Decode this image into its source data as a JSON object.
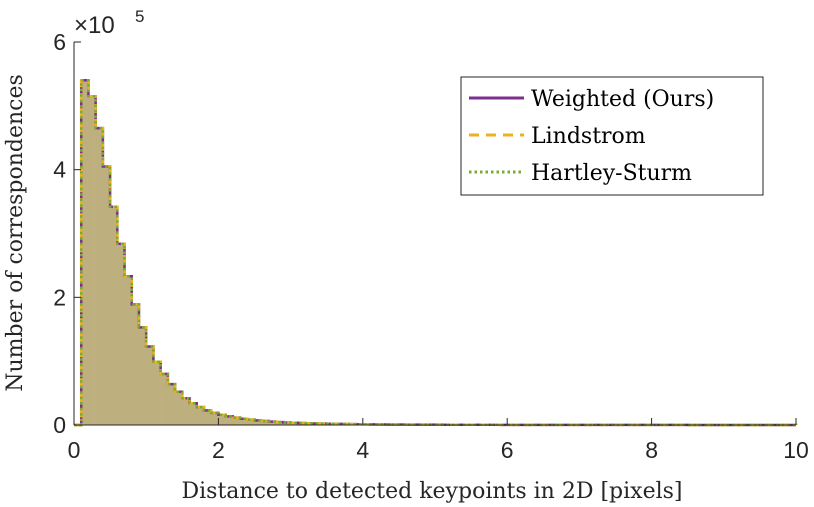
{
  "colors": {
    "weighted": "#7E2F8E",
    "lindstrom": "#EDB120",
    "hartley": "#77AC30",
    "fill": "#BDAF7E",
    "axis": "#262626"
  },
  "chart_data": {
    "type": "histogram",
    "xlabel": "Distance to detected keypoints in 2D [pixels]",
    "ylabel": "Number of correspondences",
    "xlim": [
      0,
      10
    ],
    "ylim": [
      0,
      600000
    ],
    "xticks": [
      0,
      2,
      4,
      6,
      8,
      10
    ],
    "yticks": [
      0,
      2,
      4,
      6
    ],
    "y_multiplier_base": "10",
    "y_multiplier_exp": "5",
    "bin_width": 0.1,
    "legend_position": "top-right",
    "series": [
      {
        "name": "Weighted (Ours)",
        "style": "solid",
        "color_key": "weighted"
      },
      {
        "name": "Lindstrom",
        "style": "dashed",
        "color_key": "lindstrom"
      },
      {
        "name": "Hartley-Sturm",
        "style": "dotted",
        "color_key": "hartley"
      }
    ],
    "bin_edges_start": 0,
    "counts": [
      0,
      540000,
      515000,
      465000,
      405000,
      342000,
      284000,
      233000,
      189000,
      153000,
      123000,
      99000,
      80000,
      64000,
      52000,
      42000,
      34000,
      28000,
      23000,
      19000,
      16000,
      13500,
      11500,
      9800,
      8400,
      7200,
      6200,
      5300,
      4600,
      4000,
      3500,
      3100,
      2700,
      2400,
      2100,
      1900,
      1700,
      1500,
      1350,
      1200,
      1100,
      1000,
      920,
      850,
      780,
      720,
      670,
      620,
      580,
      540,
      500,
      470,
      440,
      410,
      390,
      370,
      350,
      330,
      310,
      290,
      280,
      265,
      250,
      240,
      230,
      220,
      210,
      200,
      190,
      180,
      170,
      165,
      160,
      155,
      150,
      145,
      140,
      135,
      130,
      125,
      120,
      115,
      110,
      105,
      100,
      95,
      90,
      85,
      80,
      75,
      70,
      65,
      60,
      55,
      50,
      45,
      40,
      35,
      30,
      25
    ]
  }
}
